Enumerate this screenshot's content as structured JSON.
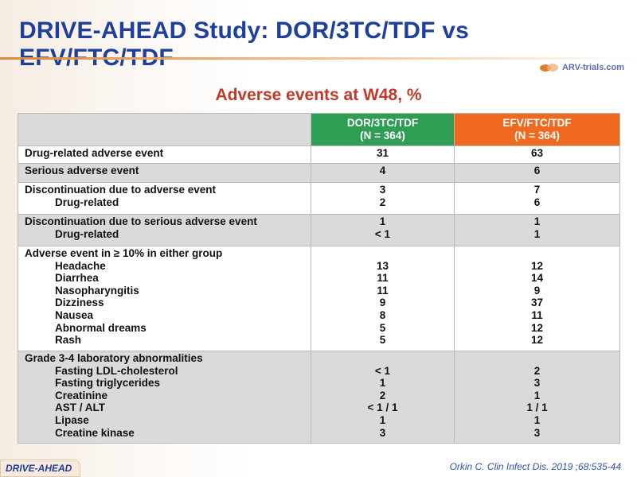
{
  "slide": {
    "title": "DRIVE-AHEAD Study: DOR/3TC/TDF vs EFV/FTC/TDF",
    "logo_text": "ARV-trials.com",
    "subtitle": "Adverse events at W48, %",
    "footer_tag": "DRIVE-AHEAD",
    "citation": "Orkin C. Clin Infect Dis. 2019 ;68:535-44",
    "colors": {
      "title": "#1f3f9c",
      "subtitle": "#c0392b",
      "dor": "#2e9e55",
      "efv": "#ef6a1f",
      "shade": "#dadada"
    }
  },
  "table": {
    "headers": {
      "dor_name": "DOR/3TC/TDF",
      "dor_n": "(N = 364)",
      "efv_name": "EFV/FTC/TDF",
      "efv_n": "(N = 364)"
    },
    "row1": {
      "label": "Drug-related adverse event",
      "dor": "31",
      "efv": "63"
    },
    "row2": {
      "label": "Serious adverse event",
      "dor": "4",
      "efv": "6"
    },
    "row3": {
      "label": "Discontinuation due to adverse event",
      "dor": "3",
      "efv": "7",
      "sub": {
        "label": "Drug-related",
        "dor": "2",
        "efv": "6"
      }
    },
    "row4": {
      "label": "Discontinuation due to serious adverse event",
      "dor": "1",
      "efv": "1",
      "sub": {
        "label": "Drug-related",
        "dor": "< 1",
        "efv": "1"
      }
    },
    "row5": {
      "label": "Adverse event in ≥ 10% in either group",
      "items": [
        {
          "label": "Headache",
          "dor": "13",
          "efv": "12"
        },
        {
          "label": "Diarrhea",
          "dor": "11",
          "efv": "14"
        },
        {
          "label": "Nasopharyngitis",
          "dor": "11",
          "efv": "9"
        },
        {
          "label": "Dizziness",
          "dor": "9",
          "efv": "37"
        },
        {
          "label": "Nausea",
          "dor": "8",
          "efv": "11"
        },
        {
          "label": "Abnormal dreams",
          "dor": "5",
          "efv": "12"
        },
        {
          "label": "Rash",
          "dor": "5",
          "efv": "12"
        }
      ]
    },
    "row6": {
      "label": "Grade 3-4 laboratory abnormalities",
      "items": [
        {
          "label": "Fasting LDL-cholesterol",
          "dor": "< 1",
          "efv": "2"
        },
        {
          "label": "Fasting triglycerides",
          "dor": "1",
          "efv": "3"
        },
        {
          "label": "Creatinine",
          "dor": "2",
          "efv": "1"
        },
        {
          "label": "AST / ALT",
          "dor": "< 1 / 1",
          "efv": "1 / 1"
        },
        {
          "label": "Lipase",
          "dor": "1",
          "efv": "1"
        },
        {
          "label": "Creatine kinase",
          "dor": "3",
          "efv": "3"
        }
      ]
    }
  }
}
